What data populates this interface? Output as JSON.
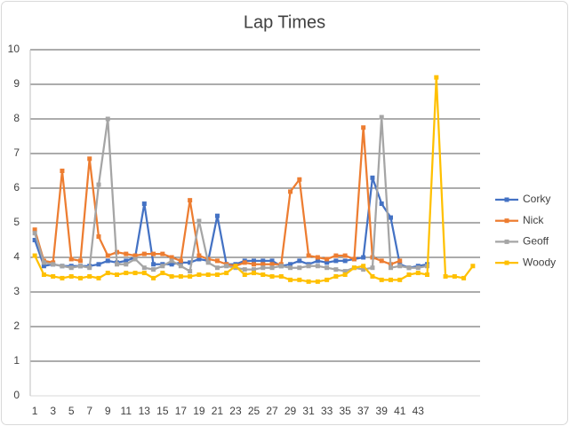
{
  "chart_data": {
    "type": "line",
    "title": "Lap Times",
    "categories": [
      1,
      null,
      3,
      null,
      5,
      null,
      7,
      null,
      9,
      null,
      11,
      null,
      13,
      null,
      15,
      null,
      17,
      null,
      19,
      null,
      21,
      null,
      23,
      null,
      25,
      null,
      27,
      null,
      29,
      null,
      31,
      null,
      33,
      null,
      35,
      null,
      37,
      null,
      39,
      null,
      41,
      null,
      43,
      null,
      null,
      null,
      null,
      null,
      null
    ],
    "ylim": [
      0,
      10
    ],
    "yticks": [
      0,
      1,
      2,
      3,
      4,
      5,
      6,
      7,
      8,
      9,
      10
    ],
    "grid": true,
    "legend": "right",
    "series": [
      {
        "name": "Corky",
        "color": "#4472c4",
        "values": [
          4.5,
          3.75,
          3.8,
          3.75,
          3.75,
          3.75,
          3.75,
          3.8,
          3.9,
          3.85,
          3.9,
          4.0,
          5.55,
          3.8,
          3.8,
          3.8,
          3.85,
          3.85,
          3.95,
          3.9,
          5.2,
          3.8,
          3.8,
          3.9,
          3.9,
          3.9,
          3.9,
          3.75,
          3.8,
          3.9,
          3.8,
          3.9,
          3.85,
          3.9,
          3.9,
          3.95,
          4.0,
          6.3,
          5.55,
          5.15,
          3.8,
          3.7,
          3.75,
          3.8,
          null,
          null,
          null,
          null,
          null
        ]
      },
      {
        "name": "Nick",
        "color": "#ed7d31",
        "values": [
          4.8,
          3.9,
          3.85,
          6.5,
          3.95,
          3.9,
          6.85,
          4.6,
          4.05,
          4.15,
          4.1,
          4.05,
          4.1,
          4.1,
          4.1,
          4.0,
          3.9,
          5.65,
          4.05,
          3.95,
          3.9,
          3.8,
          3.75,
          3.85,
          3.8,
          3.8,
          3.8,
          3.8,
          5.9,
          6.25,
          4.05,
          4.0,
          3.95,
          4.05,
          4.05,
          3.95,
          7.75,
          4.0,
          3.9,
          3.8,
          3.9,
          null,
          null,
          null,
          null,
          null,
          null,
          null,
          null
        ]
      },
      {
        "name": "Geoff",
        "color": "#a5a5a5",
        "values": [
          4.7,
          3.85,
          3.8,
          3.75,
          3.7,
          3.75,
          3.7,
          6.1,
          8.0,
          3.8,
          3.8,
          3.95,
          3.7,
          3.65,
          3.75,
          3.9,
          3.75,
          3.6,
          5.05,
          3.85,
          3.7,
          3.75,
          3.7,
          3.65,
          3.65,
          3.7,
          3.7,
          3.75,
          3.7,
          3.7,
          3.75,
          3.75,
          3.7,
          3.65,
          3.6,
          3.7,
          3.65,
          3.7,
          8.05,
          3.7,
          3.75,
          3.7,
          3.7,
          3.75,
          null,
          null,
          null,
          null,
          null
        ]
      },
      {
        "name": "Woody",
        "color": "#ffc000",
        "values": [
          4.05,
          3.5,
          3.45,
          3.4,
          3.45,
          3.4,
          3.45,
          3.4,
          3.55,
          3.5,
          3.55,
          3.55,
          3.55,
          3.4,
          3.55,
          3.45,
          3.45,
          3.45,
          3.5,
          3.5,
          3.5,
          3.55,
          3.75,
          3.5,
          3.55,
          3.5,
          3.45,
          3.45,
          3.35,
          3.35,
          3.3,
          3.3,
          3.35,
          3.45,
          3.5,
          3.7,
          3.75,
          3.45,
          3.35,
          3.35,
          3.35,
          3.5,
          3.55,
          3.5,
          9.2,
          3.45,
          3.45,
          3.4,
          3.75
        ]
      }
    ]
  }
}
